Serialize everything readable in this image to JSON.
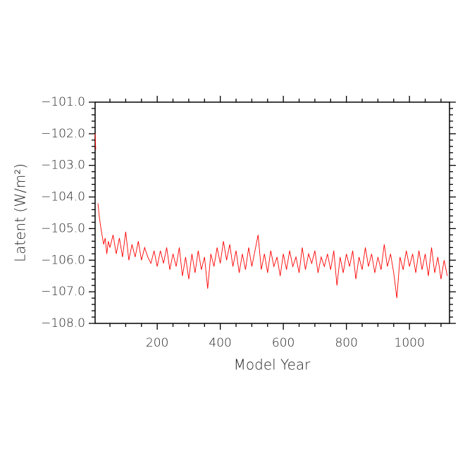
{
  "chart_data": {
    "type": "line",
    "xlabel": "Model Year",
    "ylabel": "Latent (W/m²)",
    "series": [
      {
        "name": "Latent",
        "color": "#ff0000",
        "x": [
          3,
          5,
          8,
          12,
          16,
          20,
          25,
          30,
          35,
          40,
          45,
          50,
          60,
          70,
          80,
          90,
          100,
          110,
          120,
          130,
          140,
          150,
          160,
          170,
          180,
          190,
          200,
          210,
          220,
          230,
          240,
          250,
          260,
          270,
          280,
          290,
          300,
          310,
          320,
          330,
          340,
          350,
          360,
          370,
          380,
          390,
          400,
          410,
          420,
          430,
          440,
          450,
          460,
          470,
          480,
          490,
          500,
          510,
          520,
          530,
          540,
          550,
          560,
          570,
          580,
          590,
          600,
          610,
          620,
          630,
          640,
          650,
          660,
          670,
          680,
          690,
          700,
          710,
          720,
          730,
          740,
          750,
          760,
          770,
          780,
          790,
          800,
          810,
          820,
          830,
          840,
          850,
          860,
          870,
          880,
          890,
          900,
          910,
          920,
          930,
          940,
          950,
          960,
          970,
          980,
          990,
          1000,
          1010,
          1020,
          1030,
          1040,
          1050,
          1060,
          1070,
          1080,
          1090,
          1100,
          1110,
          1120
        ],
        "values": [
          -102.0,
          -102.5,
          null,
          -104.2,
          -104.6,
          -104.9,
          -105.2,
          -105.5,
          -105.3,
          -105.8,
          -105.4,
          -105.6,
          -105.2,
          -105.8,
          -105.3,
          -105.9,
          -105.1,
          -106.0,
          -105.5,
          -105.9,
          -105.4,
          -106.0,
          -105.6,
          -105.9,
          -106.1,
          -105.7,
          -106.2,
          -105.7,
          -106.1,
          -105.6,
          -106.3,
          -105.8,
          -106.2,
          -105.6,
          -106.5,
          -105.9,
          -106.6,
          -105.8,
          -106.4,
          -105.7,
          -106.3,
          -105.9,
          -106.9,
          -105.8,
          -106.2,
          -105.6,
          -106.1,
          -105.4,
          -106.0,
          -105.5,
          -106.2,
          -105.7,
          -106.4,
          -105.8,
          -106.3,
          -105.6,
          -106.2,
          -105.7,
          -105.2,
          -106.3,
          -105.8,
          -106.4,
          -105.7,
          -106.2,
          -105.9,
          -106.5,
          -105.8,
          -106.3,
          -105.7,
          -106.2,
          -105.9,
          -106.4,
          -105.6,
          -106.3,
          -105.8,
          -106.1,
          -105.7,
          -106.4,
          -105.9,
          -106.2,
          -105.8,
          -106.3,
          -105.7,
          -106.8,
          -105.9,
          -106.4,
          -105.8,
          -106.2,
          -105.7,
          -106.6,
          -105.9,
          -106.3,
          -105.6,
          -106.2,
          -105.8,
          -106.4,
          -105.9,
          -106.3,
          -105.5,
          -106.2,
          -105.8,
          -106.4,
          -107.2,
          -105.9,
          -106.3,
          -105.7,
          -106.2,
          -105.8,
          -106.4,
          -105.7,
          -106.3,
          -105.8,
          -106.5,
          -105.6,
          -106.4,
          -105.9,
          -106.6,
          -106.0,
          -106.5
        ]
      }
    ],
    "xlim": [
      3,
      1127
    ],
    "ylim": [
      -108,
      -101
    ],
    "xticks": [
      200,
      400,
      600,
      800,
      1000
    ],
    "xminorticks": [
      50,
      100,
      150,
      250,
      300,
      350,
      450,
      500,
      550,
      650,
      700,
      750,
      850,
      900,
      950,
      1050,
      1100
    ],
    "yticks": [
      {
        "value": -108,
        "label": "−108.0"
      },
      {
        "value": -107,
        "label": "−107.0"
      },
      {
        "value": -106,
        "label": "−106.0"
      },
      {
        "value": -105,
        "label": "−105.0"
      },
      {
        "value": -104,
        "label": "−104.0"
      },
      {
        "value": -103,
        "label": "−103.0"
      },
      {
        "value": -102,
        "label": "−102.0"
      },
      {
        "value": -101,
        "label": "−101.0"
      }
    ],
    "yminorticks": [
      -107.8,
      -107.6,
      -107.4,
      -107.2,
      -106.8,
      -106.6,
      -106.4,
      -106.2,
      -105.8,
      -105.6,
      -105.4,
      -105.2,
      -104.8,
      -104.6,
      -104.4,
      -104.2,
      -103.8,
      -103.6,
      -103.4,
      -103.2,
      -102.8,
      -102.6,
      -102.4,
      -102.2,
      -101.8,
      -101.6,
      -101.4,
      -101.2
    ]
  }
}
